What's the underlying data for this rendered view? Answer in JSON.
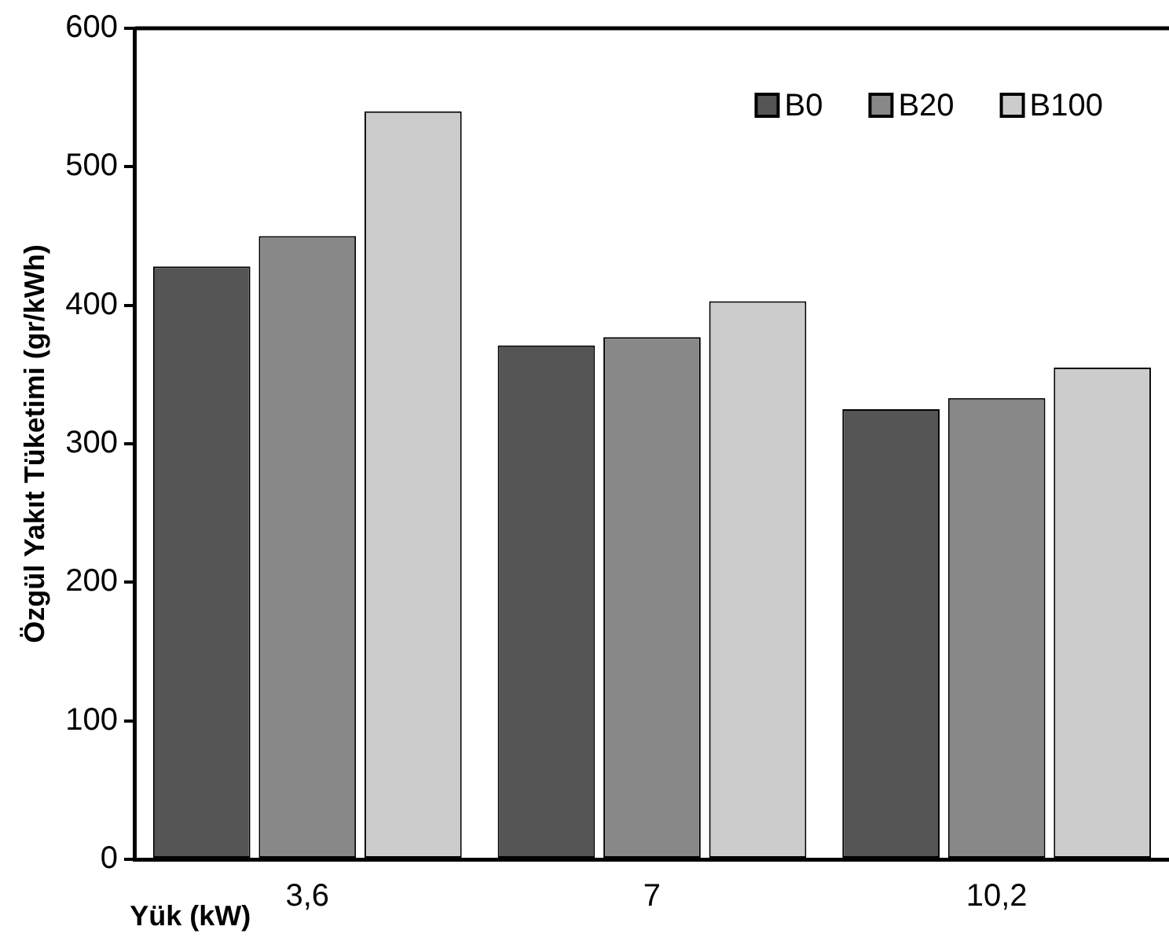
{
  "chart_data": {
    "type": "bar",
    "xlabel": "Yük (kW)",
    "ylabel": "Özgül Yakıt Tüketimi (gr/kWh)",
    "categories": [
      "3,6",
      "7",
      "10,2"
    ],
    "series": [
      {
        "name": "B0",
        "color": "#555555",
        "values": [
          428,
          371,
          325
        ]
      },
      {
        "name": "B20",
        "color": "#888888",
        "values": [
          450,
          377,
          333
        ]
      },
      {
        "name": "B100",
        "color": "#cccccc",
        "values": [
          540,
          403,
          355
        ]
      }
    ],
    "ylim": [
      0,
      600
    ],
    "yticks": [
      0,
      100,
      200,
      300,
      400,
      500,
      600
    ],
    "grid": false,
    "legend": "top right"
  }
}
